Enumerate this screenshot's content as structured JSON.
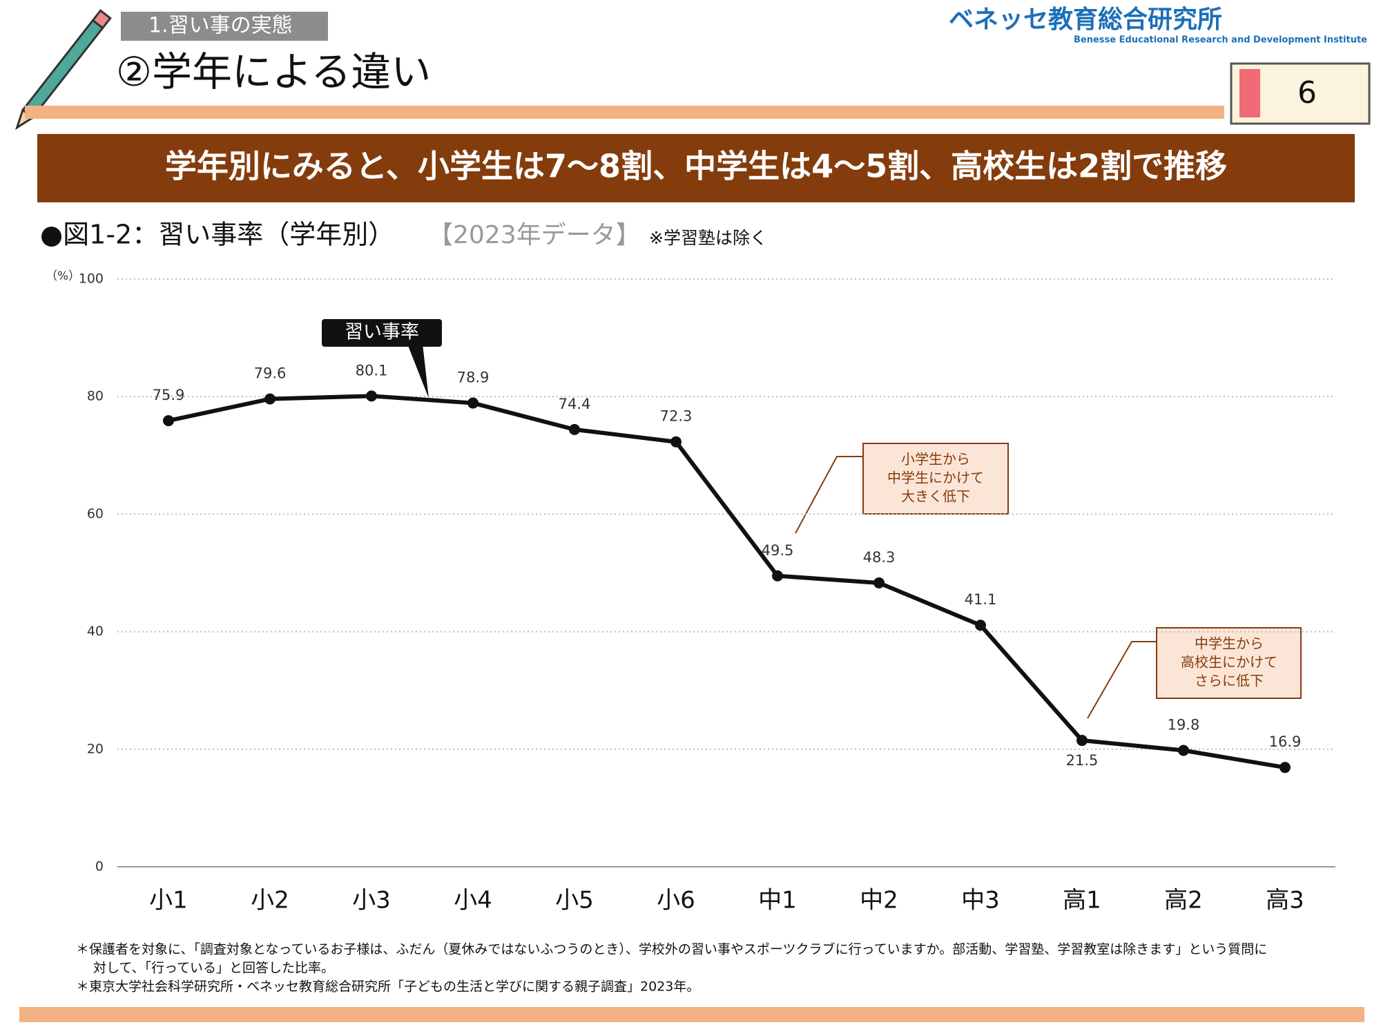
{
  "header": {
    "section": "1.習い事の実態",
    "title": "②学年による違い",
    "logo_ja": "ベネッセ教育総合研究所",
    "logo_en": "Benesse Educational Research and Development Institute",
    "page": "6"
  },
  "banner": "学年別にみると、小学生は7～8割、中学生は4～5割、高校生は2割で推移",
  "figure": {
    "label": "●図1-2：習い事率（学年別）",
    "year": "【2023年データ】",
    "note": "※学習塾は除く"
  },
  "chart_data": {
    "type": "line",
    "y_unit": "（%）",
    "categories": [
      "小1",
      "小2",
      "小3",
      "小4",
      "小5",
      "小6",
      "中1",
      "中2",
      "中3",
      "高1",
      "高2",
      "高3"
    ],
    "series": [
      {
        "name": "習い事率",
        "color": "#111111",
        "values": [
          75.9,
          79.6,
          80.1,
          78.9,
          74.4,
          72.3,
          49.5,
          48.3,
          41.1,
          21.5,
          19.8,
          16.9
        ]
      }
    ],
    "ylim": [
      0,
      100
    ],
    "yticks": [
      0,
      20,
      40,
      60,
      80,
      100
    ],
    "grid": true,
    "annotations": [
      {
        "lines": [
          "小学生から",
          "中学生にかけて",
          "大きく低下"
        ]
      },
      {
        "lines": [
          "中学生から",
          "高校生にかけて",
          "さらに低下"
        ]
      }
    ]
  },
  "footnotes": [
    [
      "＊保護者を対象に、「調査対象となっているお子様は、ふだん（夏休みではないふつうのとき）、学校外の習い事やスポーツクラブに行っていますか。部活動、学習塾、学習教室は除きます」という質問に",
      "対して、「行っている」と回答した比率。"
    ],
    [
      "＊東京大学社会科学研究所・ベネッセ教育総合研究所「子どもの生活と学びに関する親子調査」2023年。"
    ]
  ]
}
